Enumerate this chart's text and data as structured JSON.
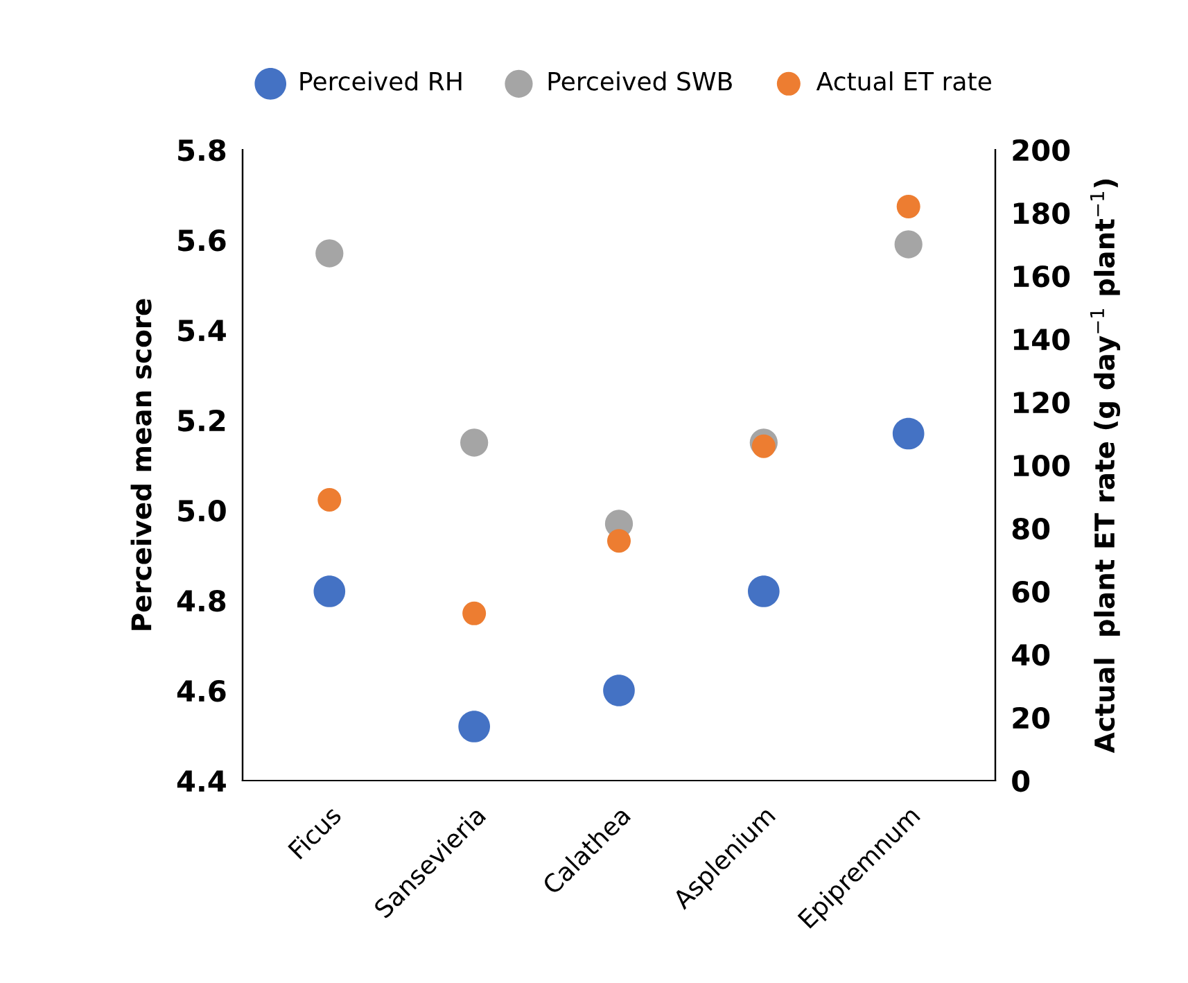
{
  "chart_data": {
    "type": "scatter",
    "categories": [
      "Ficus",
      "Sansevieria",
      "Calathea",
      "Asplenium",
      "Epipremnum"
    ],
    "ylabel": "Perceived mean score",
    "y2label": "Actual  plant ET rate (g day$^{−1}$ plant$^{−1}$)",
    "ylim": [
      4.4,
      5.8
    ],
    "yticks": [
      {
        "value": 4.4,
        "label": "4.4"
      },
      {
        "value": 4.6,
        "label": "4.6"
      },
      {
        "value": 4.8,
        "label": "4.8"
      },
      {
        "value": 5.0,
        "label": "5.0"
      },
      {
        "value": 5.2,
        "label": "5.2"
      },
      {
        "value": 5.4,
        "label": "5.4"
      },
      {
        "value": 5.6,
        "label": "5.6"
      },
      {
        "value": 5.8,
        "label": "5.8"
      }
    ],
    "y2lim": [
      0,
      200
    ],
    "y2ticks": [
      0,
      20,
      40,
      60,
      80,
      100,
      120,
      140,
      160,
      180,
      200
    ],
    "marker": "circle",
    "legend": "top",
    "grid": false,
    "series": [
      {
        "name": "Perceived RH",
        "color": "#4472c4",
        "values": [
          4.82,
          4.52,
          4.6,
          4.82,
          5.17
        ]
      },
      {
        "name": "Perceived SWB",
        "color": "#a5a5a5",
        "values": [
          5.57,
          5.15,
          4.97,
          5.15,
          5.59
        ]
      },
      {
        "name": "Actual ET rate",
        "color": "#ed7d31",
        "axis": "y2",
        "values": [
          89,
          53,
          76,
          106,
          182
        ]
      }
    ]
  }
}
